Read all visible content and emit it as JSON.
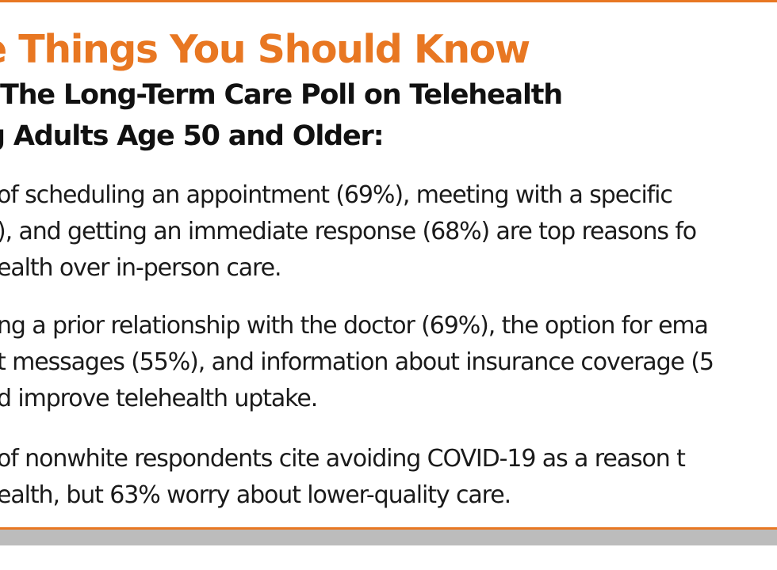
{
  "heading": "e Things You Should Know",
  "subheading": {
    "line1": "The Long-Term Care Poll on Telehealth",
    "line2": "g Adults Age 50 and Older:"
  },
  "findings": [
    {
      "lines": [
        " of scheduling an appointment (69%), meeting with a specific",
        "), and getting an immediate response (68%) are top reasons fo",
        "ealth over in-person care."
      ]
    },
    {
      "lines": [
        "ng a prior relationship with the doctor (69%), the option for ema",
        "t messages (55%), and information about insurance coverage (5",
        "d improve telehealth uptake."
      ]
    },
    {
      "lines": [
        "of nonwhite respondents cite avoiding COVID-19 as a reason t",
        "ealth, but 63% worry about lower-quality care."
      ]
    }
  ],
  "colors": {
    "accent": "#e87722",
    "text": "#1a1a1a",
    "band": "#bcbcbc"
  }
}
